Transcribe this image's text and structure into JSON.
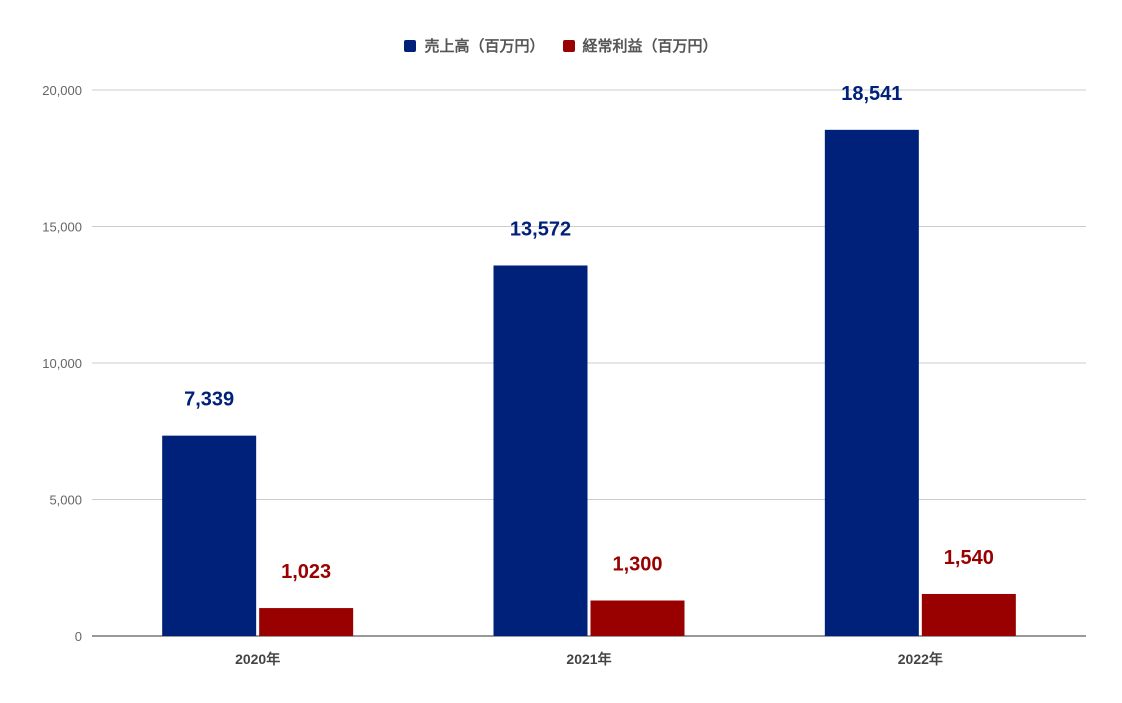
{
  "chart_data": {
    "type": "bar",
    "categories": [
      "2020年",
      "2021年",
      "2022年"
    ],
    "series": [
      {
        "name": "売上高（百万円）",
        "values": [
          7339,
          13572,
          18541
        ],
        "labels": [
          "7,339",
          "13,572",
          "18,541"
        ],
        "color": "#002179"
      },
      {
        "name": "経常利益（百万円）",
        "values": [
          1023,
          1300,
          1540
        ],
        "labels": [
          "1,023",
          "1,300",
          "1,540"
        ],
        "color": "#990000"
      }
    ],
    "ylim": [
      0,
      20000
    ],
    "yticks": [
      0,
      5000,
      10000,
      15000,
      20000
    ],
    "ytick_labels": [
      "0",
      "5,000",
      "10,000",
      "15,000",
      "20,000"
    ],
    "grid": true,
    "legend_position": "top-center",
    "title": "",
    "xlabel": "",
    "ylabel": ""
  }
}
